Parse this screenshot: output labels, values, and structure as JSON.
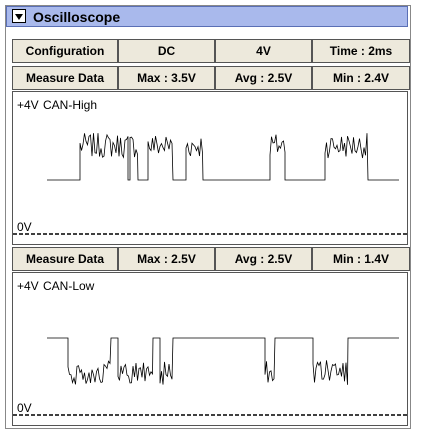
{
  "header": {
    "title": "Oscilloscope"
  },
  "config_row": [
    "Configuration",
    "DC",
    "4V",
    "Time : 2ms"
  ],
  "channels": [
    {
      "measure_row": [
        "Measure Data",
        "Max : 3.5V",
        "Avg : 2.5V",
        "Min : 2.4V"
      ],
      "top_label": "+4V",
      "name": "CAN-High",
      "bottom_label": "0V"
    },
    {
      "measure_row": [
        "Measure Data",
        "Max : 2.5V",
        "Avg : 2.5V",
        "Min : 1.4V"
      ],
      "top_label": "+4V",
      "name": "CAN-Low",
      "bottom_label": "0V"
    }
  ]
}
